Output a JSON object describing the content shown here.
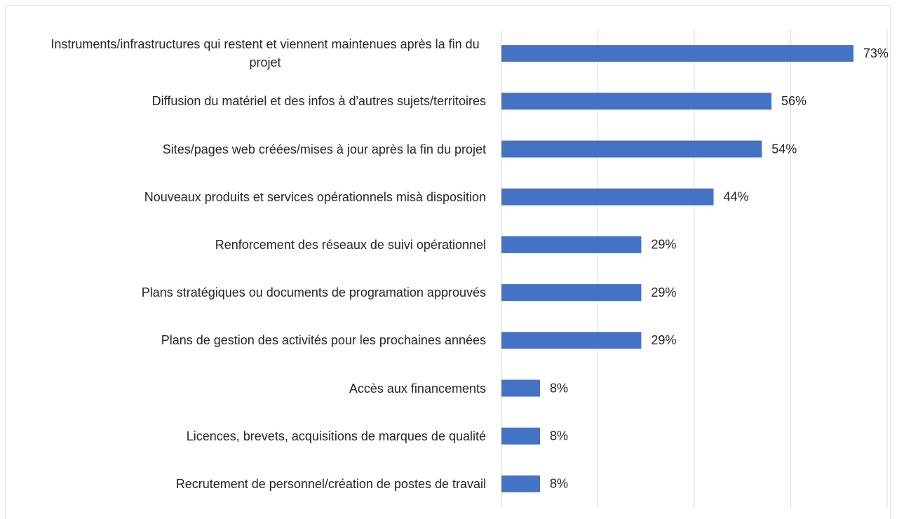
{
  "chart_data": {
    "type": "bar",
    "orientation": "horizontal",
    "categories": [
      "Instruments/infrastructures qui restent et viennent maintenues après la fin du projet",
      "Diffusion du matériel et des infos à d'autres sujets/territoires",
      "Sites/pages web crééеs/mises à jour après la fin du projet",
      "Nouveaux produits et services opérationnels misà disposition",
      "Renforcement des réseaux de suivi opérationnel",
      "Plans stratégiques ou documents de programation approuvés",
      "Plans de gestion des activités pour les prochaines années",
      "Accès aux financements",
      "Licences, brevets, acquisitions de marques de qualité",
      "Recrutement de personnel/création de postes de travail"
    ],
    "values": [
      73,
      56,
      54,
      44,
      29,
      29,
      29,
      8,
      8,
      8
    ],
    "value_labels": [
      "73%",
      "56%",
      "54%",
      "44%",
      "29%",
      "29%",
      "29%",
      "8%",
      "8%",
      "8%"
    ],
    "color": "#4472c4",
    "xlim": [
      0,
      80
    ],
    "xticks": [
      0,
      20,
      40,
      60,
      80
    ],
    "grid": true
  }
}
